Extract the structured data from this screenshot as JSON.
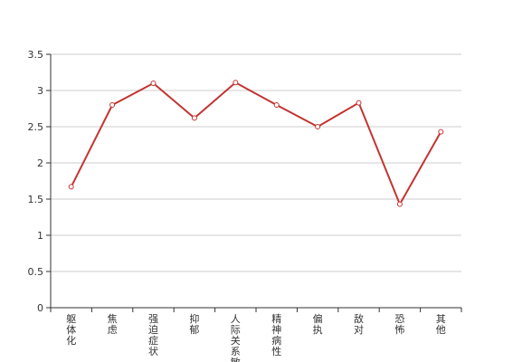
{
  "chart_data": {
    "type": "line",
    "categories": [
      "躯体化",
      "焦虑",
      "强迫症状",
      "抑郁",
      "人际关系敏感",
      "精神病性",
      "偏执",
      "敌对",
      "恐怖",
      "其他"
    ],
    "values": [
      1.67,
      2.8,
      3.1,
      2.62,
      3.11,
      2.8,
      2.5,
      2.83,
      1.43,
      2.43
    ],
    "ylim": [
      0,
      3.5
    ],
    "yticks": [
      0,
      0.5,
      1,
      1.5,
      2,
      2.5,
      3,
      3.5
    ],
    "ytick_labels": [
      "0",
      "0.5",
      "1",
      "1.5",
      "2",
      "2.5",
      "3",
      "3.5"
    ],
    "title": "",
    "xlabel": "",
    "ylabel": "",
    "grid": true,
    "colors": {
      "line": "#c23531",
      "grid": "#cccccc",
      "axis": "#333333"
    }
  }
}
